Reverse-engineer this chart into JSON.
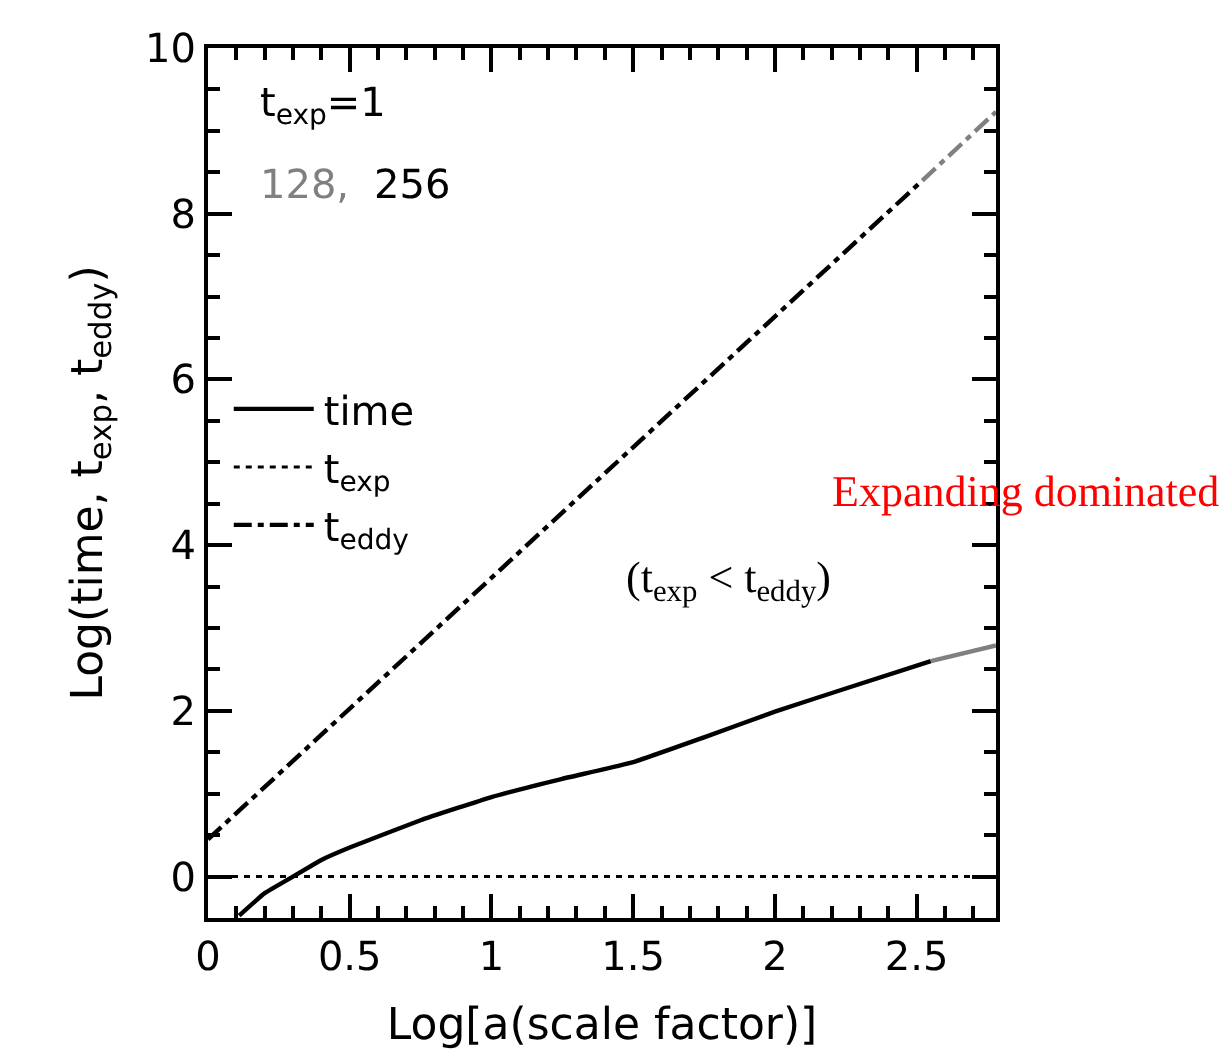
{
  "chart_data": {
    "type": "line",
    "xlabel": "Log[a(scale factor)]",
    "ylabel": "Log(time, t$_{exp}$, t$_{eddy}$)",
    "xlim": [
      0,
      2.78
    ],
    "ylim": [
      -0.5,
      10
    ],
    "xticks": [
      0,
      0.5,
      1,
      1.5,
      2,
      2.5
    ],
    "yticks": [
      0,
      2,
      4,
      6,
      8,
      10
    ],
    "legend": "top left",
    "series": [
      {
        "name": "time",
        "color": "#000000",
        "line_style": "solid",
        "x": [
          0.11,
          0.2,
          0.3,
          0.4,
          0.5,
          0.75,
          1.0,
          1.25,
          1.5,
          1.75,
          2.0,
          2.25,
          2.55
        ],
        "values": [
          -0.47,
          -0.2,
          0.0,
          0.2,
          0.35,
          0.68,
          0.96,
          1.18,
          1.38,
          1.68,
          1.99,
          2.27,
          2.6
        ]
      },
      {
        "name": "t$_{exp}$",
        "color": "#000000",
        "line_style": "dotted",
        "x": [
          0,
          2.78
        ],
        "values": [
          0,
          0
        ]
      },
      {
        "name": "t$_{eddy}$",
        "color": "#000000",
        "line_style": "dashed",
        "x": [
          0,
          2.52
        ],
        "values": [
          0.45,
          8.4
        ]
      },
      {
        "color": "#808080",
        "line_style": "solid",
        "x": [
          2.55,
          2.78
        ],
        "values": [
          2.6,
          2.79
        ]
      },
      {
        "color": "#808080",
        "line_style": "dashed",
        "x": [
          2.52,
          2.78
        ],
        "values": [
          8.4,
          9.23
        ]
      }
    ],
    "annotations": [
      "t$_{exp}$=1",
      "128,",
      "256",
      "Expanding dominated",
      "(t$_{exp}$ < t$_{eddy}$)"
    ]
  }
}
